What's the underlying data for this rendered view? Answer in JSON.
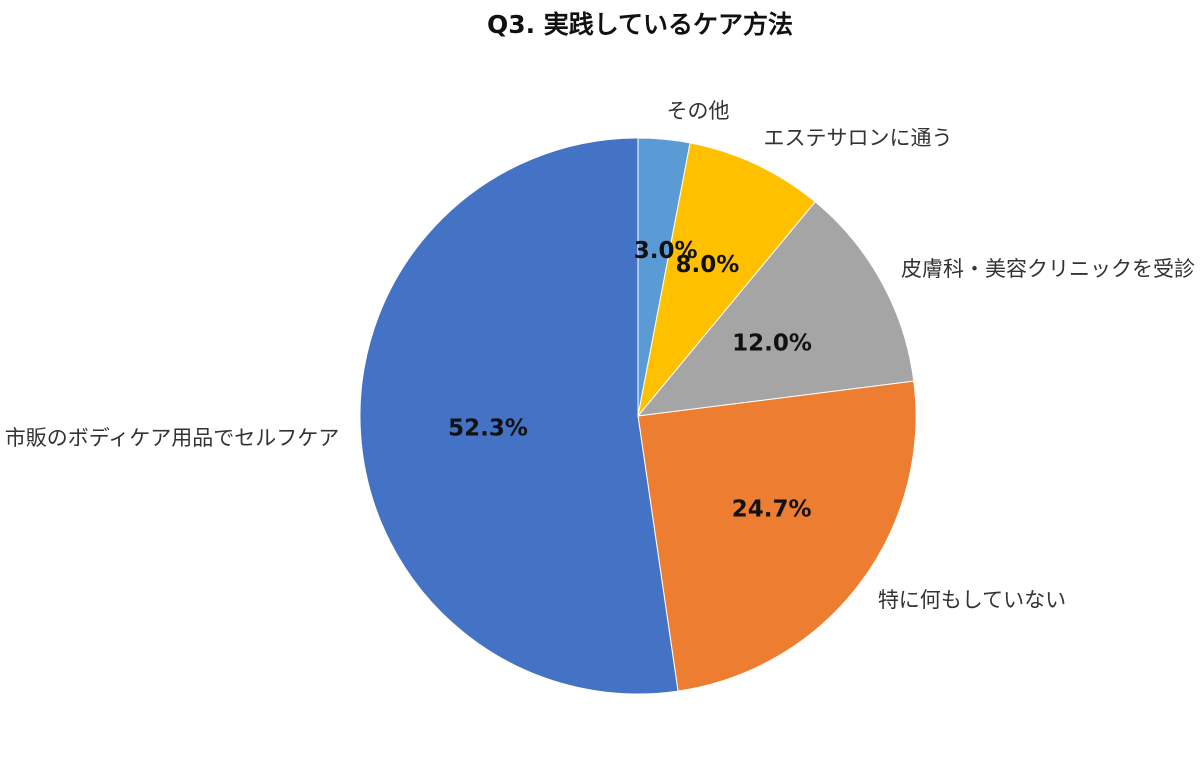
{
  "chart_data": {
    "type": "pie",
    "title": "Q3. 実践しているケア方法",
    "slices": [
      {
        "label": "その他",
        "value": 3.0,
        "value_label": "3.0%",
        "color": "#5B9BD5"
      },
      {
        "label": "エステサロンに通う",
        "value": 8.0,
        "value_label": "8.0%",
        "color": "#FFC000"
      },
      {
        "label": "皮膚科・美容クリニックを受診",
        "value": 12.0,
        "value_label": "12.0%",
        "color": "#A5A5A5"
      },
      {
        "label": "特に何もしていない",
        "value": 24.7,
        "value_label": "24.7%",
        "color": "#ED7D31"
      },
      {
        "label": "市販のボディケア用品でセルフケア",
        "value": 52.3,
        "value_label": "52.3%",
        "color": "#4472C4"
      }
    ],
    "start_angle": "12 o'clock",
    "direction": "clockwise",
    "legend": "none"
  }
}
